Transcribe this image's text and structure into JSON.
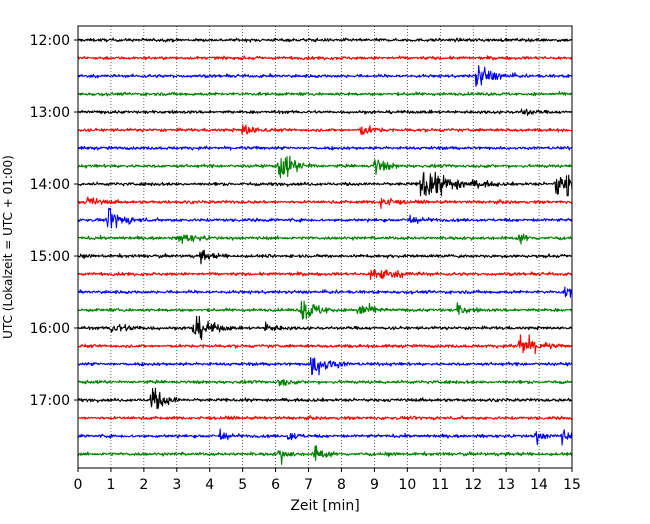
{
  "chart_data": {
    "type": "line",
    "title": "",
    "xlabel": "Zeit  [min]",
    "ylabel": "UTC (Lokalzeit = UTC + 01:00)",
    "xlim": [
      0,
      15
    ],
    "xticks": [
      0,
      1,
      2,
      3,
      4,
      5,
      6,
      7,
      8,
      9,
      10,
      11,
      12,
      13,
      14,
      15
    ],
    "ytick_labels": [
      "12:00",
      "13:00",
      "14:00",
      "15:00",
      "16:00",
      "17:00"
    ],
    "grid_vertical": true,
    "trace_colors": [
      "#000000",
      "#ff0000",
      "#0000ff",
      "#008000"
    ],
    "noise_amplitude": 0.1,
    "traces": [
      {
        "start": "12:00",
        "events": []
      },
      {
        "start": "12:15",
        "events": []
      },
      {
        "start": "12:30",
        "events": [
          {
            "t": 12.1,
            "amp": 0.7,
            "dur": 0.4
          }
        ]
      },
      {
        "start": "12:45",
        "events": []
      },
      {
        "start": "13:00",
        "events": [
          {
            "t": 13.5,
            "amp": 0.3,
            "dur": 0.2
          }
        ]
      },
      {
        "start": "13:15",
        "events": [
          {
            "t": 5.0,
            "amp": 0.35,
            "dur": 0.3
          },
          {
            "t": 8.6,
            "amp": 0.3,
            "dur": 0.3
          }
        ]
      },
      {
        "start": "13:30",
        "events": []
      },
      {
        "start": "13:45",
        "events": [
          {
            "t": 6.1,
            "amp": 0.9,
            "dur": 0.4
          },
          {
            "t": 9.0,
            "amp": 0.5,
            "dur": 0.3
          }
        ]
      },
      {
        "start": "14:00",
        "events": [
          {
            "t": 10.4,
            "amp": 1.0,
            "dur": 0.8
          },
          {
            "t": 14.5,
            "amp": 0.8,
            "dur": 0.25
          },
          {
            "t": 14.85,
            "amp": 0.8,
            "dur": 0.2
          }
        ]
      },
      {
        "start": "14:15",
        "events": [
          {
            "t": 0.3,
            "amp": 0.3,
            "dur": 0.3
          },
          {
            "t": 9.2,
            "amp": 0.35,
            "dur": 0.3
          }
        ]
      },
      {
        "start": "14:30",
        "events": [
          {
            "t": 0.9,
            "amp": 0.6,
            "dur": 0.4
          },
          {
            "t": 10.0,
            "amp": 0.3,
            "dur": 0.3
          }
        ]
      },
      {
        "start": "14:45",
        "events": [
          {
            "t": 3.1,
            "amp": 0.3,
            "dur": 0.4
          },
          {
            "t": 13.4,
            "amp": 0.25,
            "dur": 0.2
          }
        ]
      },
      {
        "start": "15:00",
        "events": [
          {
            "t": 3.7,
            "amp": 0.3,
            "dur": 0.3
          }
        ]
      },
      {
        "start": "15:15",
        "events": [
          {
            "t": 8.9,
            "amp": 0.4,
            "dur": 0.6
          }
        ]
      },
      {
        "start": "15:30",
        "events": [
          {
            "t": 14.8,
            "amp": 0.3,
            "dur": 0.3
          }
        ]
      },
      {
        "start": "15:45",
        "events": [
          {
            "t": 6.8,
            "amp": 0.7,
            "dur": 0.4
          },
          {
            "t": 8.5,
            "amp": 0.5,
            "dur": 0.3
          },
          {
            "t": 11.5,
            "amp": 0.3,
            "dur": 0.3
          }
        ]
      },
      {
        "start": "16:00",
        "events": [
          {
            "t": 1.0,
            "amp": 0.3,
            "dur": 0.5
          },
          {
            "t": 3.5,
            "amp": 0.9,
            "dur": 0.4
          },
          {
            "t": 5.7,
            "amp": 0.25,
            "dur": 0.3
          }
        ]
      },
      {
        "start": "16:15",
        "events": [
          {
            "t": 13.4,
            "amp": 0.8,
            "dur": 0.4
          }
        ]
      },
      {
        "start": "16:30",
        "events": [
          {
            "t": 7.1,
            "amp": 0.8,
            "dur": 0.4
          }
        ]
      },
      {
        "start": "16:45",
        "events": [
          {
            "t": 6.1,
            "amp": 0.3,
            "dur": 0.2
          }
        ]
      },
      {
        "start": "17:00",
        "events": [
          {
            "t": 2.2,
            "amp": 0.9,
            "dur": 0.3
          }
        ]
      },
      {
        "start": "17:15",
        "events": []
      },
      {
        "start": "17:30",
        "events": [
          {
            "t": 4.3,
            "amp": 0.4,
            "dur": 0.2
          },
          {
            "t": 6.4,
            "amp": 0.3,
            "dur": 0.2
          },
          {
            "t": 13.9,
            "amp": 0.35,
            "dur": 0.2
          },
          {
            "t": 14.7,
            "amp": 0.4,
            "dur": 0.2
          }
        ]
      },
      {
        "start": "17:45",
        "events": [
          {
            "t": 6.1,
            "amp": 0.5,
            "dur": 0.2
          },
          {
            "t": 7.2,
            "amp": 0.5,
            "dur": 0.2
          }
        ]
      }
    ]
  }
}
